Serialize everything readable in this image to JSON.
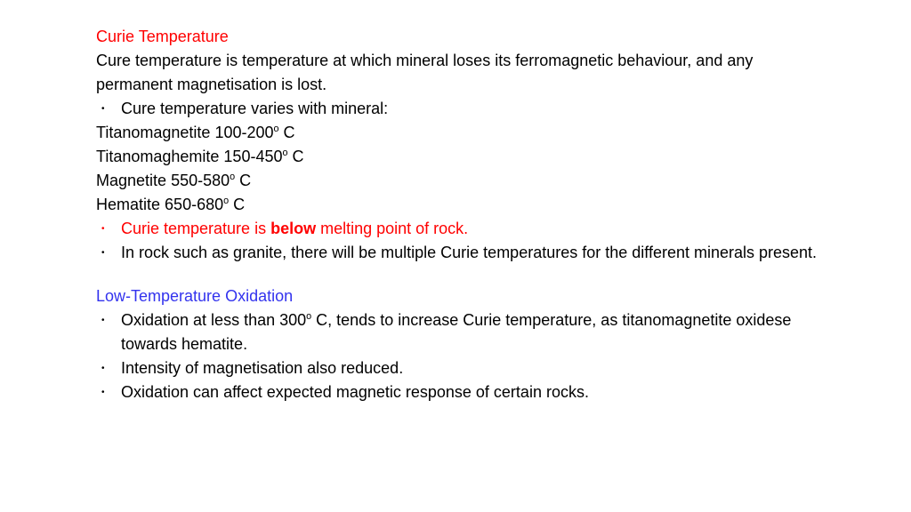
{
  "doc": {
    "heading1": "Curie Temperature",
    "heading1_color": "#ff0000",
    "para1": "Cure temperature is temperature at which mineral loses its ferromagnetic behaviour, and any permanent magnetisation is lost.",
    "bullet1": "Cure temperature varies with mineral:",
    "minerals": [
      {
        "name": "Titanomagnetite",
        "range": "100-200",
        "unit_sup": "o",
        "unit_rest": " C"
      },
      {
        "name": "Titanomaghemite",
        "range": "150-450",
        "unit_sup": "o",
        "unit_rest": " C"
      },
      {
        "name": "Magnetite",
        "range": "550-580",
        "unit_sup": "o",
        "unit_rest": " C"
      },
      {
        "name": "Hematite",
        "range": "650-680",
        "unit_sup": "o",
        "unit_rest": " C"
      }
    ],
    "bullet2_pre": "Curie temperature is ",
    "bullet2_bold": "below",
    "bullet2_post": " melting point of rock.",
    "bullet3": "In rock such as granite, there will be multiple Curie temperatures for the different minerals present.",
    "heading2": "Low-Temperature Oxidation",
    "heading2_color": "#3333ee",
    "bullet4_pre": "Oxidation at less than 300",
    "bullet4_sup": "o",
    "bullet4_post": " C, tends to increase Curie temperature, as titanomagnetite oxidese towards hematite.",
    "bullet5": "Intensity of magnetisation also reduced.",
    "bullet6": "Oxidation can affect expected magnetic response of certain rocks.",
    "text_color": "#000000",
    "background_color": "#ffffff",
    "font_size_pt": 14,
    "red": "#ff0000",
    "blue": "#3333ee"
  }
}
